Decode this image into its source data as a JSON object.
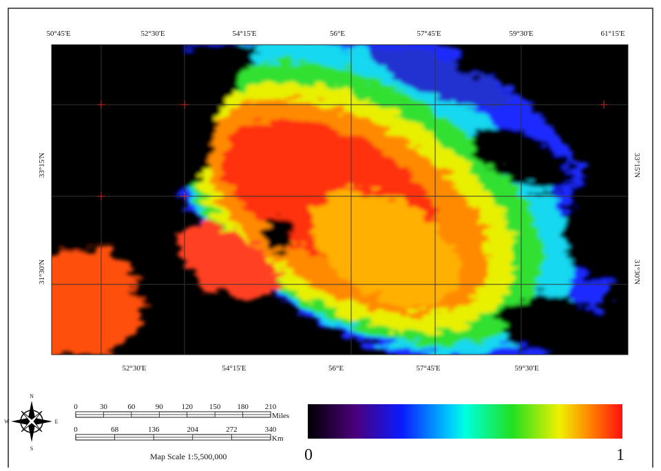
{
  "map": {
    "top_labels": [
      "50°45'E",
      "52°30'E",
      "54°15'E",
      "56°E",
      "57°45'E",
      "59°30'E",
      "61°15'E"
    ],
    "bottom_labels": [
      "52°30'E",
      "54°15'E",
      "56°E",
      "57°45'E",
      "59°30'E"
    ],
    "left_labels": [
      "33°15'N",
      "31°30'N"
    ],
    "right_labels": [
      "33°15'N",
      "31°30'N"
    ],
    "scale": {
      "miles_ticks": [
        0,
        30,
        60,
        90,
        120,
        150,
        180,
        210
      ],
      "miles_unit": "Miles",
      "km_ticks": [
        0,
        68,
        136,
        204,
        272,
        340
      ],
      "km_unit": "Km",
      "text": "Map Scale 1:5,500,000"
    },
    "legend": {
      "min_label": "0",
      "max_label": "1"
    },
    "compass": {
      "n": "N",
      "e": "E",
      "s": "S",
      "w": "W"
    }
  }
}
